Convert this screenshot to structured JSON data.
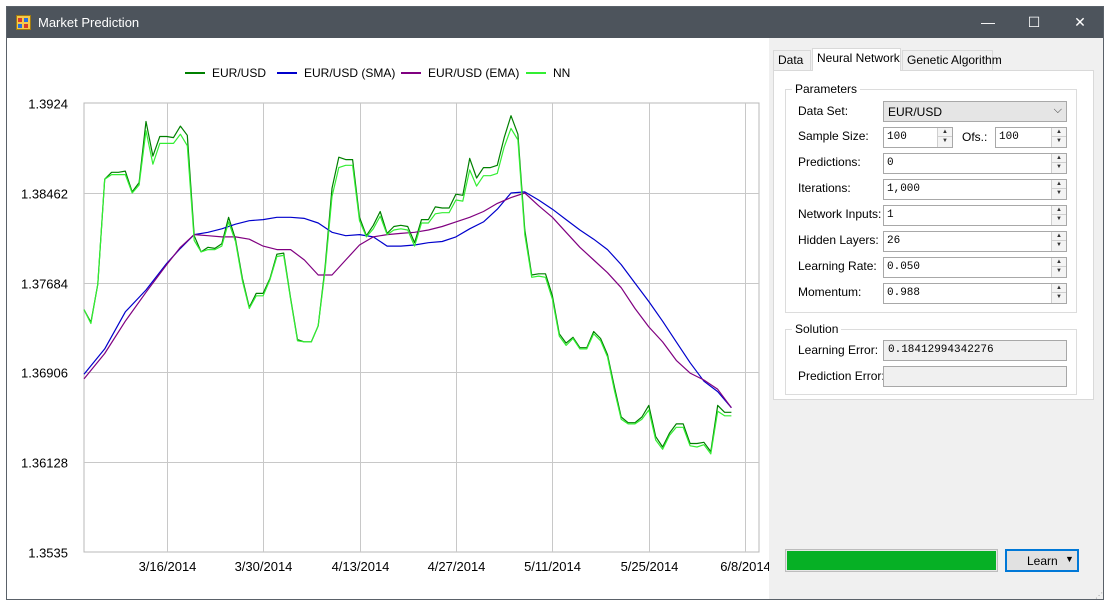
{
  "window": {
    "title": "Market Prediction",
    "app_icon": "chart-app-icon",
    "controls": {
      "minimize": "—",
      "maximize": "☐",
      "close": "✕"
    }
  },
  "chart_data": {
    "type": "line",
    "title": "",
    "xlabel": "",
    "ylabel": "",
    "ylim": [
      1.3535,
      1.3924
    ],
    "yticks": [
      "1.3924",
      "1.38462",
      "1.37684",
      "1.36906",
      "1.36128",
      "1.3535"
    ],
    "ytick_values": [
      1.3924,
      1.38462,
      1.37684,
      1.36906,
      1.36128,
      1.3535
    ],
    "xticks": [
      "3/16/2014",
      "3/30/2014",
      "4/13/2014",
      "4/27/2014",
      "5/11/2014",
      "5/25/2014",
      "6/8/2014"
    ],
    "x_range_days": [
      0,
      94
    ],
    "xtick_days": [
      12,
      26,
      40,
      54,
      68,
      82,
      96
    ],
    "grid": true,
    "legend_position": "top",
    "series": [
      {
        "name": "EUR/USD",
        "color": "#008000",
        "x": [
          0,
          1,
          2,
          3,
          4,
          5,
          6,
          7,
          8,
          9,
          10,
          11,
          12,
          13,
          14,
          15,
          16,
          17,
          18,
          19,
          20,
          21,
          22,
          23,
          24,
          25,
          26,
          27,
          28,
          29,
          30,
          31,
          32,
          33,
          34,
          35,
          36,
          37,
          38,
          39,
          40,
          41,
          42,
          43,
          44,
          45,
          46,
          47,
          48,
          49,
          50,
          51,
          52,
          53,
          54,
          55,
          56,
          57,
          58,
          59,
          60,
          61,
          62,
          63,
          64,
          65,
          66,
          67,
          68,
          69,
          70,
          71,
          72,
          73,
          74,
          75,
          76,
          77,
          78,
          79,
          80,
          81,
          82,
          83,
          84,
          85,
          86,
          87,
          88,
          89,
          90,
          91,
          92,
          93,
          94
        ],
        "y": [
          1.3745,
          1.3734,
          1.3767,
          1.3858,
          1.3864,
          1.3864,
          1.3865,
          1.3847,
          1.3855,
          1.3908,
          1.3878,
          1.3895,
          1.3895,
          1.3894,
          1.3904,
          1.3896,
          1.3809,
          1.3795,
          1.3799,
          1.3798,
          1.3802,
          1.3825,
          1.3806,
          1.3772,
          1.3747,
          1.3759,
          1.3759,
          1.3772,
          1.3793,
          1.3794,
          1.3755,
          1.3719,
          1.3717,
          1.3717,
          1.3731,
          1.3782,
          1.385,
          1.3877,
          1.3875,
          1.3875,
          1.3825,
          1.3809,
          1.3818,
          1.383,
          1.3811,
          1.3817,
          1.3818,
          1.3817,
          1.3803,
          1.3823,
          1.3823,
          1.3834,
          1.3833,
          1.3833,
          1.3845,
          1.3844,
          1.3876,
          1.3859,
          1.3868,
          1.3868,
          1.387,
          1.3894,
          1.3913,
          1.3897,
          1.3814,
          1.3775,
          1.3776,
          1.3776,
          1.3757,
          1.3724,
          1.3716,
          1.3721,
          1.3712,
          1.3712,
          1.3726,
          1.372,
          1.3706,
          1.3678,
          1.3652,
          1.3647,
          1.3647,
          1.3652,
          1.3662,
          1.3635,
          1.3626,
          1.3638,
          1.3646,
          1.3646,
          1.3629,
          1.3629,
          1.363,
          1.3622,
          1.3662,
          1.3656,
          1.3656
        ]
      },
      {
        "name": "EUR/USD (SMA)",
        "color": "#0000cc",
        "x": [
          0,
          3,
          6,
          9,
          12,
          14,
          16,
          18,
          20,
          22,
          24,
          26,
          28,
          30,
          32,
          34,
          36,
          38,
          40,
          42,
          44,
          46,
          48,
          50,
          52,
          54,
          56,
          58,
          60,
          62,
          64,
          66,
          68,
          70,
          72,
          74,
          76,
          78,
          80,
          82,
          84,
          86,
          88,
          90,
          92,
          94
        ],
        "y": [
          1.3689,
          1.3711,
          1.3743,
          1.3762,
          1.3785,
          1.3798,
          1.381,
          1.3812,
          1.3815,
          1.3819,
          1.3822,
          1.3823,
          1.3825,
          1.3825,
          1.3824,
          1.382,
          1.3812,
          1.3809,
          1.381,
          1.3808,
          1.38,
          1.38,
          1.3801,
          1.3803,
          1.3804,
          1.3808,
          1.3815,
          1.3821,
          1.3832,
          1.3846,
          1.3847,
          1.384,
          1.3832,
          1.3823,
          1.3814,
          1.3806,
          1.3797,
          1.3784,
          1.3768,
          1.3752,
          1.3735,
          1.3717,
          1.3699,
          1.3683,
          1.3674,
          1.366
        ]
      },
      {
        "name": "EUR/USD (EMA)",
        "color": "#800080",
        "x": [
          0,
          3,
          6,
          9,
          12,
          14,
          16,
          18,
          20,
          22,
          24,
          26,
          28,
          30,
          32,
          34,
          36,
          38,
          40,
          42,
          44,
          46,
          48,
          50,
          52,
          54,
          56,
          58,
          60,
          62,
          64,
          66,
          68,
          70,
          72,
          74,
          76,
          78,
          80,
          82,
          84,
          86,
          88,
          90,
          92,
          94
        ],
        "y": [
          1.3685,
          1.3707,
          1.3735,
          1.376,
          1.3784,
          1.3799,
          1.381,
          1.3809,
          1.3808,
          1.3808,
          1.3806,
          1.38,
          1.3797,
          1.3797,
          1.3788,
          1.3775,
          1.3775,
          1.3788,
          1.3801,
          1.3808,
          1.381,
          1.3811,
          1.3812,
          1.3814,
          1.3817,
          1.3821,
          1.3825,
          1.383,
          1.3837,
          1.3842,
          1.3846,
          1.3835,
          1.3825,
          1.3812,
          1.3799,
          1.3788,
          1.3777,
          1.3764,
          1.3746,
          1.373,
          1.3717,
          1.3701,
          1.369,
          1.3684,
          1.3676,
          1.366
        ]
      },
      {
        "name": "NN",
        "color": "#33ee33",
        "x": [
          0,
          1,
          2,
          3,
          4,
          5,
          6,
          7,
          8,
          9,
          10,
          11,
          12,
          13,
          14,
          15,
          16,
          17,
          18,
          19,
          20,
          21,
          22,
          23,
          24,
          25,
          26,
          27,
          28,
          29,
          30,
          31,
          32,
          33,
          34,
          35,
          36,
          37,
          38,
          39,
          40,
          41,
          42,
          43,
          44,
          45,
          46,
          47,
          48,
          49,
          50,
          51,
          52,
          53,
          54,
          55,
          56,
          57,
          58,
          59,
          60,
          61,
          62,
          63,
          64,
          65,
          66,
          67,
          68,
          69,
          70,
          71,
          72,
          73,
          74,
          75,
          76,
          77,
          78,
          79,
          80,
          81,
          82,
          83,
          84,
          85,
          86,
          87,
          88,
          89,
          90,
          91,
          92,
          93,
          94
        ],
        "y": [
          1.3745,
          1.3733,
          1.3767,
          1.3858,
          1.3862,
          1.3862,
          1.3862,
          1.3846,
          1.3853,
          1.39,
          1.3871,
          1.3889,
          1.3889,
          1.3889,
          1.3897,
          1.3887,
          1.3805,
          1.3795,
          1.3797,
          1.3797,
          1.38,
          1.3821,
          1.3804,
          1.377,
          1.3746,
          1.3757,
          1.3757,
          1.3771,
          1.3791,
          1.3792,
          1.3754,
          1.3718,
          1.3717,
          1.3717,
          1.3731,
          1.3779,
          1.3843,
          1.3868,
          1.387,
          1.387,
          1.3822,
          1.3808,
          1.3815,
          1.3826,
          1.381,
          1.3814,
          1.3815,
          1.3814,
          1.38,
          1.382,
          1.382,
          1.3828,
          1.3829,
          1.3829,
          1.384,
          1.3839,
          1.3866,
          1.3852,
          1.3861,
          1.3861,
          1.3863,
          1.3886,
          1.3902,
          1.3892,
          1.381,
          1.3773,
          1.3774,
          1.3773,
          1.3754,
          1.3722,
          1.3714,
          1.372,
          1.3711,
          1.3711,
          1.3724,
          1.3718,
          1.3704,
          1.3675,
          1.365,
          1.3646,
          1.3646,
          1.365,
          1.3658,
          1.3632,
          1.3624,
          1.3636,
          1.3643,
          1.3643,
          1.3627,
          1.3626,
          1.3628,
          1.362,
          1.3657,
          1.3653,
          1.3653
        ]
      }
    ]
  },
  "tabs": [
    {
      "label": "Data",
      "active": false
    },
    {
      "label": "Neural Network",
      "active": true
    },
    {
      "label": "Genetic Algorithm",
      "active": false
    }
  ],
  "parameters": {
    "legend": "Parameters",
    "data_set": {
      "label": "Data Set:",
      "value": "EUR/USD"
    },
    "sample_size": {
      "label": "Sample Size:",
      "value": "100"
    },
    "offset": {
      "label": "Ofs.:",
      "value": "100"
    },
    "predictions": {
      "label": "Predictions:",
      "value": "0"
    },
    "iterations": {
      "label": "Iterations:",
      "value": "1,000"
    },
    "network_inputs": {
      "label": "Network Inputs:",
      "value": "1"
    },
    "hidden_layers": {
      "label": "Hidden Layers:",
      "value": "26"
    },
    "learning_rate": {
      "label": "Learning Rate:",
      "value": "0.050"
    },
    "momentum": {
      "label": "Momentum:",
      "value": "0.988"
    }
  },
  "solution": {
    "legend": "Solution",
    "learning_error": {
      "label": "Learning Error:",
      "value": "0.18412994342276"
    },
    "prediction_error": {
      "label": "Prediction Error:",
      "value": ""
    }
  },
  "progress": {
    "fraction": 1.0,
    "color": "#06b025"
  },
  "learn_button": {
    "label": "Learn",
    "caret": "▼"
  },
  "icons": {
    "spin_up": "▲",
    "spin_down": "▼",
    "combo_arrow": "⌵"
  }
}
